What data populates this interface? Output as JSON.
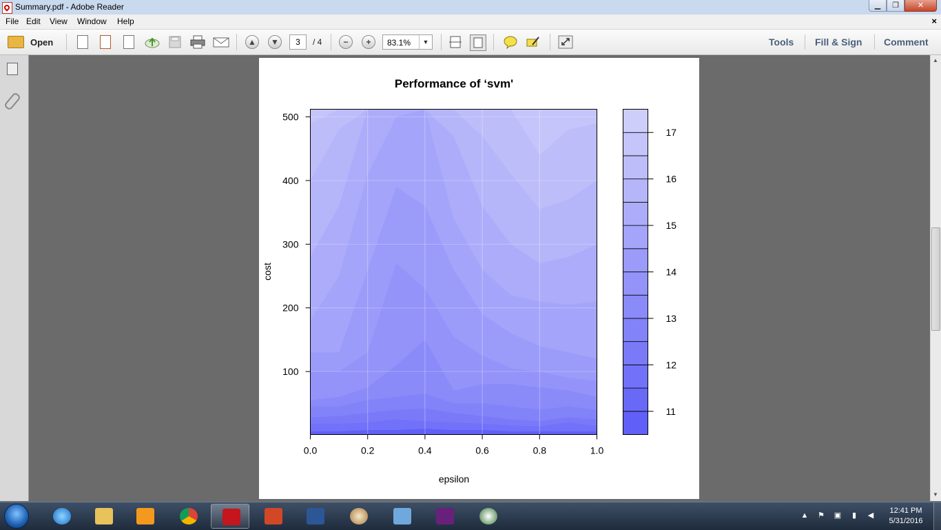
{
  "window": {
    "title": "Summary.pdf - Adobe Reader",
    "minimize": "▁",
    "maximize": "❐",
    "close": "✕"
  },
  "menu": {
    "items": [
      "File",
      "Edit",
      "View",
      "Window",
      "Help"
    ],
    "close_doc": "×"
  },
  "toolbar": {
    "open_label": "Open",
    "page_current": "3",
    "page_total": "/ 4",
    "zoom": "83.1%",
    "right_links": [
      "Tools",
      "Fill & Sign",
      "Comment"
    ]
  },
  "taskbar": {
    "time": "12:41 PM",
    "date": "5/31/2016",
    "apps": [
      "internet-explorer",
      "file-explorer",
      "media-player",
      "chrome",
      "adobe-reader",
      "powerpoint",
      "word",
      "paint",
      "wordpad",
      "visual-studio",
      "app"
    ],
    "active_app": "adobe-reader"
  },
  "chart_data": {
    "type": "heatmap",
    "title": "Performance of ‘svm'",
    "xlabel": "epsilon",
    "ylabel": "cost",
    "x": [
      0.0,
      0.1,
      0.2,
      0.3,
      0.4,
      0.5,
      0.6,
      0.7,
      0.8,
      0.9,
      1.0
    ],
    "xlim": [
      0,
      1
    ],
    "ylim": [
      1,
      512
    ],
    "x_ticks": [
      "0.0",
      "0.2",
      "0.4",
      "0.6",
      "0.8",
      "1.0"
    ],
    "y_ticks": [
      "100",
      "200",
      "300",
      "400",
      "500"
    ],
    "colorbar": {
      "levels": [
        10.5,
        11,
        11.5,
        12,
        12.5,
        13,
        13.5,
        14,
        14.5,
        15,
        15.5,
        16,
        16.5,
        17,
        17.5
      ],
      "tick_labels": [
        "11",
        "12",
        "13",
        "14",
        "15",
        "16",
        "17"
      ],
      "low_color": "#5c5cf8",
      "high_color": "#d2d2fb"
    },
    "description_bands": [
      {
        "label": "cost 500, epsilon 0.0-0.1",
        "value": 16.5
      },
      {
        "label": "cost 500, epsilon 0.4",
        "value": 15.0
      },
      {
        "label": "cost 500, epsilon 0.9",
        "value": 17.5
      },
      {
        "label": "cost 250, epsilon 0.3",
        "value": 13.5
      },
      {
        "label": "cost 20, all epsilon",
        "value": 11.5
      }
    ]
  }
}
